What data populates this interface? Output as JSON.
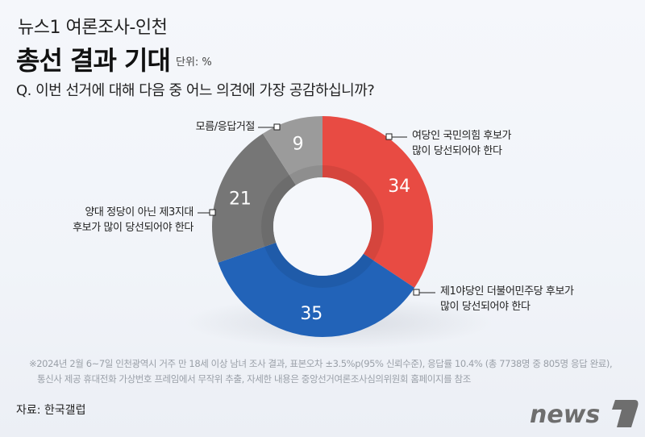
{
  "header": {
    "subtitle": "뉴스1 여론조사-인천",
    "title": "총선 결과 기대",
    "unit": "단위: %",
    "question": "Q. 이번 선거에 대해 다음 중 어느 의견에 가장 공감하십니까?"
  },
  "chart_data": {
    "type": "pie",
    "subtype": "donut",
    "title": "총선 결과 기대",
    "unit": "%",
    "categories": [
      "여당인 국민의힘 후보가 많이 당선되어야 한다",
      "제1야당인 더불어민주당 후보가 많이 당선되어야 한다",
      "양대 정당이 아닌 제3지대 후보가 많이 당선되어야 한다",
      "모름/응답거절"
    ],
    "values": [
      34,
      35,
      21,
      9
    ],
    "colors": [
      "#e84b43",
      "#2263b8",
      "#767676",
      "#9b9b9b"
    ],
    "labels_display": [
      "34",
      "35",
      "21",
      "9"
    ]
  },
  "labels": {
    "ppp_line1": "여당인 국민의힘 후보가",
    "ppp_line2": "많이 당선되어야 한다",
    "dp_line1": "제1야당인 더불어민주당 후보가",
    "dp_line2": "많이 당선되어야 한다",
    "third_line1": "양대 정당이 아닌 제3지대",
    "third_line2": "후보가 많이 당선되어야 한다",
    "unknown": "모름/응답거절"
  },
  "footer": {
    "note_line1": "※2024년 2월 6~7일 인천광역시 거주 만 18세 이상 남녀 조사 결과, 표본오차 ±3.5%p(95% 신뢰수준), 응답률 10.4% (총 7738명 중 805명 응답 완료),",
    "note_line2": "통신사 제공 휴대전화 가상번호 프레임에서 무작위 추출, 자세한 내용은 중앙선거여론조사심의위원회 홈페이지를 참조",
    "source": "자료: 한국갤럽",
    "logo_text": "news"
  }
}
